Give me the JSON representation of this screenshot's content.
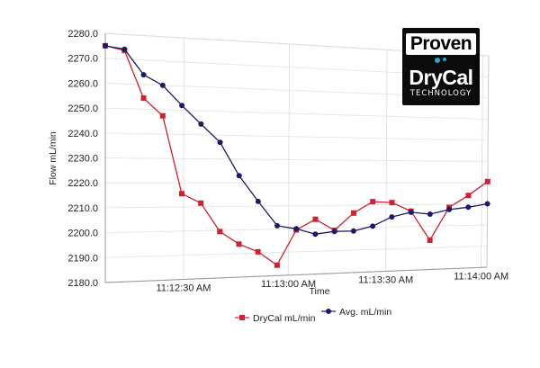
{
  "logo": {
    "line1": "Proven",
    "line2": "DryCal",
    "line3": "TECHNOLOGY",
    "accent_color": "#2aa8c8"
  },
  "chart_data": {
    "type": "line",
    "xlabel": "Time",
    "ylabel": "Flow mL/min",
    "ylim": [
      2180,
      2280
    ],
    "y_ticks": [
      "2180.0",
      "2190.0",
      "2200.0",
      "2210.0",
      "2220.0",
      "2230.0",
      "2240.0",
      "2250.0",
      "2260.0",
      "2270.0",
      "2280.0"
    ],
    "x_ticks": [
      "11:12:30 AM",
      "11:13:00 AM",
      "11:13:30 AM",
      "11:14:00 AM"
    ],
    "grid": true,
    "legend_position": "bottom",
    "series": [
      {
        "name": "DryCal mL/min",
        "color": "#cc2233",
        "marker": "square",
        "values": [
          2275.0,
          2273.5,
          2254.5,
          2247.5,
          2215.5,
          2211.5,
          2199.5,
          2194.0,
          2190.5,
          2184.5,
          2199.5,
          2204.0,
          2199.0,
          2206.5,
          2211.5,
          2211.0,
          2207.0,
          2193.5,
          2208.5,
          2214.0,
          2220.5
        ]
      },
      {
        "name": "Avg. mL/min",
        "color": "#1a1a66",
        "marker": "circle",
        "values": [
          2275.0,
          2274.0,
          2264.0,
          2260.0,
          2252.0,
          2244.5,
          2237.0,
          2223.0,
          2212.0,
          2201.5,
          2200.0,
          2197.5,
          2198.5,
          2198.5,
          2200.5,
          2204.5,
          2206.5,
          2205.5,
          2207.5,
          2208.5,
          2210.0
        ]
      }
    ]
  }
}
